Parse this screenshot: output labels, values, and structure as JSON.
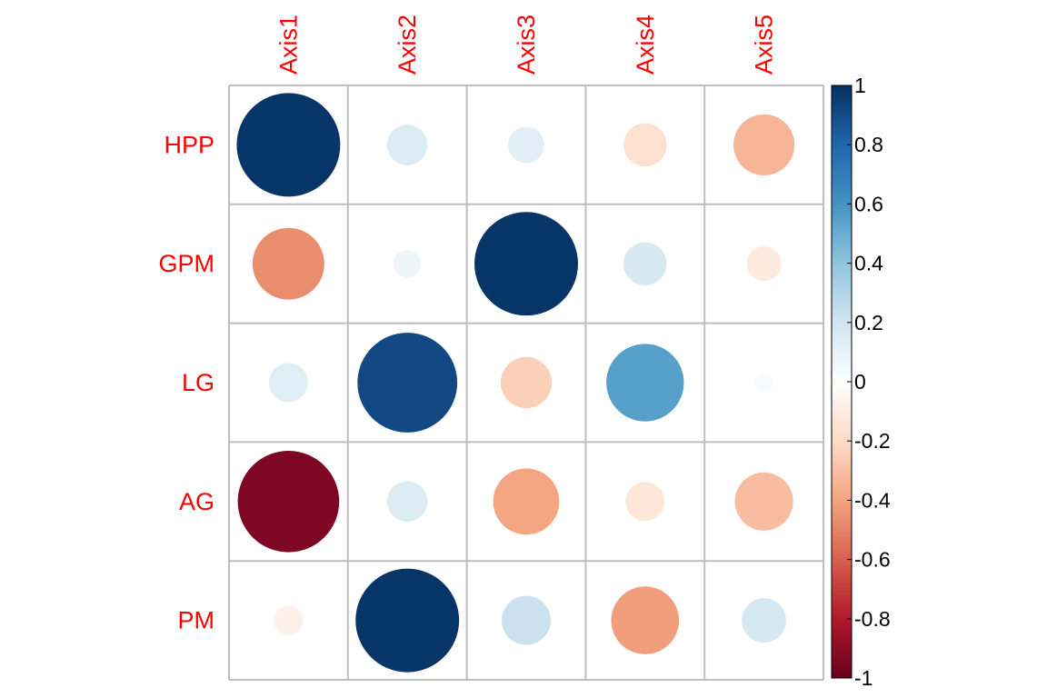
{
  "chart_data": {
    "type": "heatmap",
    "style": "corrplot-circle",
    "rows": [
      "HPP",
      "GPM",
      "LG",
      "AG",
      "PM"
    ],
    "columns": [
      "Axis1",
      "Axis2",
      "Axis3",
      "Axis4",
      "Axis5"
    ],
    "values": [
      [
        0.98,
        0.15,
        0.12,
        -0.17,
        -0.34
      ],
      [
        -0.47,
        0.07,
        0.98,
        0.17,
        -0.11
      ],
      [
        0.14,
        0.91,
        -0.24,
        0.55,
        0.03
      ],
      [
        -0.94,
        0.15,
        -0.4,
        -0.14,
        -0.31
      ],
      [
        -0.08,
        0.98,
        0.22,
        -0.42,
        0.18
      ]
    ],
    "legend": {
      "range": [
        -1,
        1
      ],
      "ticks": [
        "1",
        "0.8",
        "0.6",
        "0.4",
        "0.2",
        "0",
        "-0.2",
        "-0.4",
        "-0.6",
        "-0.8",
        "-1"
      ],
      "placement": "right"
    },
    "colors": {
      "label": "#ff0000",
      "grid": "#bebebe",
      "ramp": [
        "#67001f",
        "#b2182b",
        "#d6604d",
        "#f4a582",
        "#fddbc7",
        "#ffffff",
        "#d1e5f0",
        "#92c5de",
        "#4393c3",
        "#2166ac",
        "#053061"
      ]
    }
  }
}
